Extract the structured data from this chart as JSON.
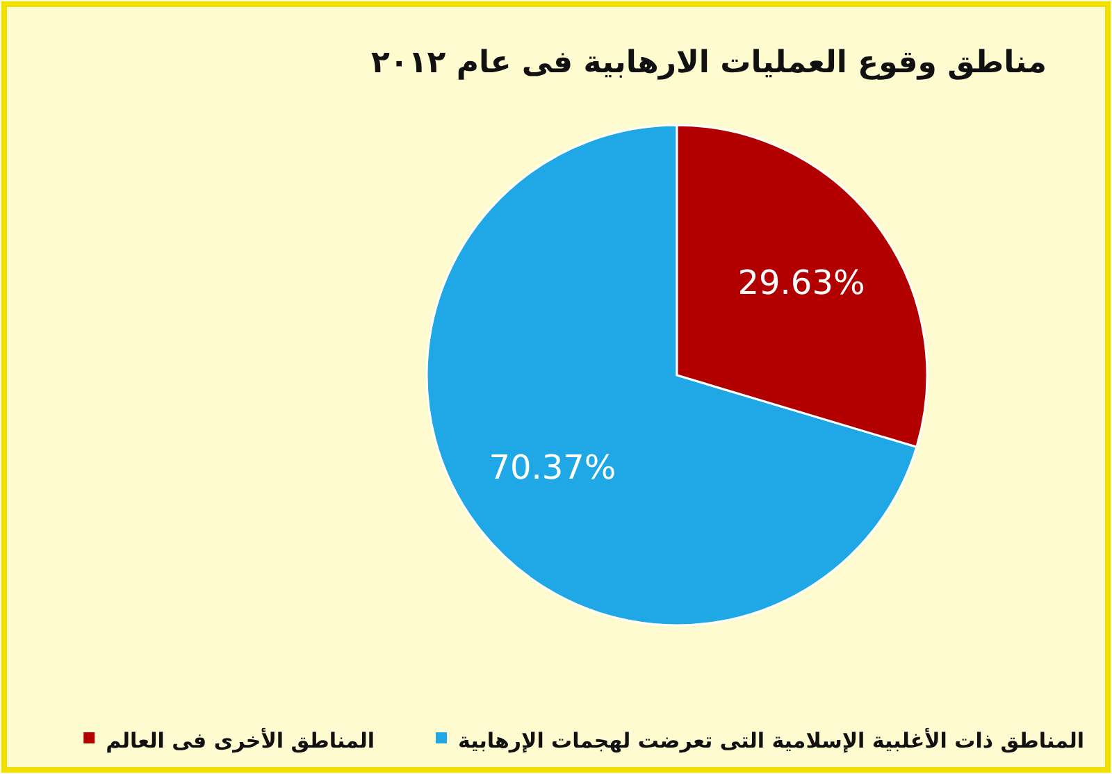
{
  "chart_data": {
    "type": "pie",
    "title": "مناطق وقوع العمليات الارهابية فى عام ٢٠١٢",
    "categories": [
      "المناطق ذات الأغلبية الإسلامية التى تعرضت لهجمات الإرهابية",
      "المناطق الأخرى فى العالم"
    ],
    "values": [
      70.37,
      29.63
    ],
    "colors": [
      "#1fa7e6",
      "#b20000"
    ],
    "value_labels": [
      "70.37%",
      "29.63%"
    ],
    "legend": "bottom"
  }
}
